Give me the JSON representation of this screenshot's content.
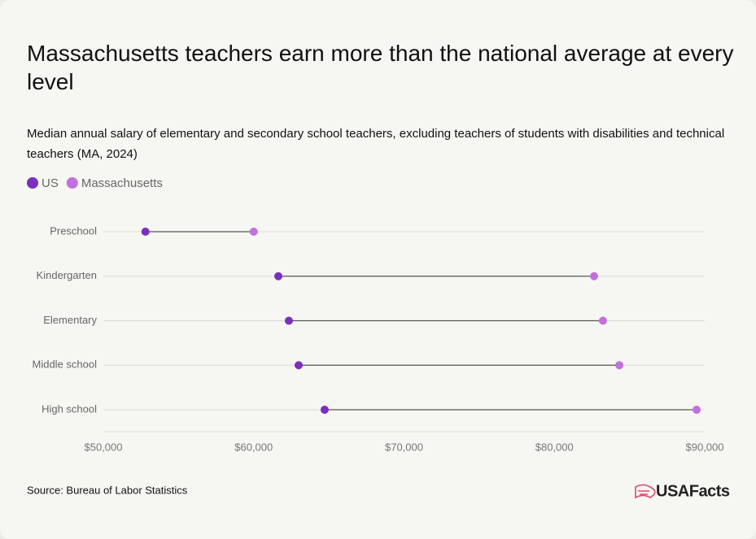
{
  "chart_data": {
    "type": "dumbbell",
    "title": "Massachusetts teachers earn more than the national average at every level",
    "subtitle": "Median annual salary of elementary and secondary school teachers, excluding teachers of students with disabilities and technical teachers (MA, 2024)",
    "categories": [
      "Preschool",
      "Kindergarten",
      "Elementary",
      "Middle school",
      "High school"
    ],
    "series": [
      {
        "name": "US",
        "color": "#7b2fbe",
        "values": [
          52800,
          61640,
          62340,
          62990,
          64720
        ]
      },
      {
        "name": "Massachusetts",
        "color": "#c071dc",
        "values": [
          60000,
          82640,
          83230,
          84320,
          89460
        ]
      }
    ],
    "xlim": [
      50000,
      90000
    ],
    "xticks": [
      {
        "value": 50000,
        "label": "$50,000"
      },
      {
        "value": 60000,
        "label": "$60,000"
      },
      {
        "value": 70000,
        "label": "$70,000"
      },
      {
        "value": 80000,
        "label": "$80,000"
      },
      {
        "value": 90000,
        "label": "$90,000"
      }
    ],
    "source": "Source: Bureau of Labor Statistics",
    "logo": "USAFacts"
  }
}
